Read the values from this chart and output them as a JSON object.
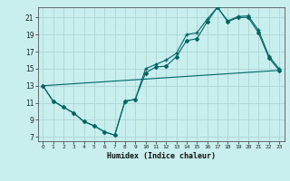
{
  "xlabel": "Humidex (Indice chaleur)",
  "background_color": "#c8eeee",
  "grid_color": "#b0d8d8",
  "line_color": "#006666",
  "xlim": [
    -0.5,
    23.5
  ],
  "ylim": [
    6.5,
    22.2
  ],
  "xticks": [
    0,
    1,
    2,
    3,
    4,
    5,
    6,
    7,
    8,
    9,
    10,
    11,
    12,
    13,
    14,
    15,
    16,
    17,
    18,
    19,
    20,
    21,
    22,
    23
  ],
  "yticks": [
    7,
    9,
    11,
    13,
    15,
    17,
    19,
    21
  ],
  "line1_x": [
    0,
    1,
    2,
    3,
    4,
    5,
    6,
    7,
    8,
    9,
    10,
    11,
    12,
    13,
    14,
    15,
    16,
    17,
    18,
    19,
    20,
    21,
    22,
    23
  ],
  "line1_y": [
    13.0,
    11.2,
    10.5,
    9.8,
    8.8,
    8.3,
    7.6,
    7.2,
    11.2,
    11.4,
    14.5,
    15.2,
    15.3,
    16.4,
    18.3,
    18.5,
    20.5,
    22.2,
    20.5,
    21.0,
    21.0,
    19.2,
    16.3,
    14.8
  ],
  "line2_x": [
    0,
    1,
    2,
    3,
    4,
    5,
    6,
    7,
    8,
    9,
    10,
    11,
    12,
    13,
    14,
    15,
    16,
    17,
    18,
    19,
    20,
    21,
    22,
    23
  ],
  "line2_y": [
    13.0,
    11.2,
    10.5,
    9.8,
    8.8,
    8.3,
    7.6,
    7.2,
    11.2,
    11.4,
    15.0,
    15.5,
    16.0,
    16.8,
    19.0,
    19.2,
    20.8,
    22.2,
    20.6,
    21.1,
    21.2,
    19.5,
    16.5,
    15.0
  ],
  "line3_x": [
    0,
    23
  ],
  "line3_y": [
    13.0,
    14.8
  ]
}
